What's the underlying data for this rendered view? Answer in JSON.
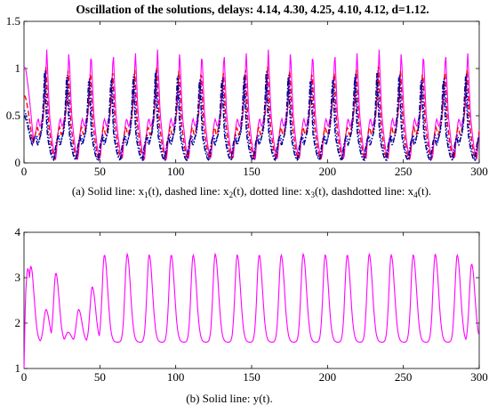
{
  "chart_data": [
    {
      "type": "line",
      "title": "Oscillation of the solutions, delays: 4.14, 4.30, 4.25, 4.10, 4.12, d=1.12.",
      "caption": {
        "prefix": "(a) Solid line: x",
        "s1": "1",
        "mid1": "(t), dashed line: x",
        "s2": "2",
        "mid2": "(t), dotted line: x",
        "s3": "3",
        "mid3": "(t), dashdotted line: x",
        "s4": "4",
        "suffix": "(t)."
      },
      "xlim": [
        0,
        300
      ],
      "ylim": [
        0,
        1.5
      ],
      "x_ticks": [
        0,
        50,
        100,
        150,
        200,
        250,
        300
      ],
      "x_tick_labels": [
        "0",
        "50",
        "100",
        "150",
        "200",
        "250",
        "300"
      ],
      "y_ticks": [
        0,
        0.5,
        1,
        1.5
      ],
      "y_tick_labels": [
        "0",
        "0.5",
        "1",
        "1.5"
      ],
      "period": 14.6,
      "series": [
        {
          "style": "solid",
          "color": "#ff00ff",
          "start": 1.0,
          "base": 0.52,
          "peak": 1.2,
          "trough": 0.05
        },
        {
          "style": "dashed",
          "color": "#ff0000",
          "start": 0.7,
          "base": 0.42,
          "peak": 1.02,
          "trough": 0.04
        },
        {
          "style": "dotted",
          "color": "#0000ff",
          "start": 0.55,
          "base": 0.33,
          "peak": 0.98,
          "trough": 0.03
        },
        {
          "style": "dashdot",
          "color": "#000080",
          "start": 0.5,
          "base": 0.3,
          "peak": 0.95,
          "trough": 0.03
        }
      ]
    },
    {
      "type": "line",
      "caption": "(b) Solid line: y(t).",
      "xlim": [
        0,
        300
      ],
      "ylim": [
        1,
        4
      ],
      "x_ticks": [
        0,
        50,
        100,
        150,
        200,
        250,
        300
      ],
      "x_tick_labels": [
        "0",
        "50",
        "100",
        "150",
        "200",
        "250",
        "300"
      ],
      "y_ticks": [
        1,
        2,
        3,
        4
      ],
      "y_tick_labels": [
        "1",
        "2",
        "3",
        "4"
      ],
      "series": [
        {
          "style": "solid",
          "color": "#ff00ff",
          "start": 1.0,
          "base": 1.58,
          "peaks": [
            [
              2.5,
              3.2
            ],
            [
              4.5,
              3.25
            ],
            [
              14.5,
              2.3
            ],
            [
              21,
              3.1
            ],
            [
              29,
              1.8
            ],
            [
              36,
              2.3
            ],
            [
              45,
              2.8
            ],
            [
              53,
              3.5
            ],
            [
              68,
              3.52
            ],
            [
              82.5,
              3.5
            ],
            [
              97,
              3.5
            ],
            [
              111.5,
              3.5
            ],
            [
              126,
              3.52
            ],
            [
              140.5,
              3.5
            ],
            [
              155,
              3.5
            ],
            [
              169.5,
              3.5
            ],
            [
              184,
              3.52
            ],
            [
              198.5,
              3.5
            ],
            [
              213,
              3.5
            ],
            [
              227.5,
              3.52
            ],
            [
              242,
              3.5
            ],
            [
              256.5,
              3.5
            ],
            [
              271,
              3.52
            ],
            [
              285.5,
              3.5
            ],
            [
              295,
              3.3
            ]
          ]
        }
      ]
    }
  ]
}
